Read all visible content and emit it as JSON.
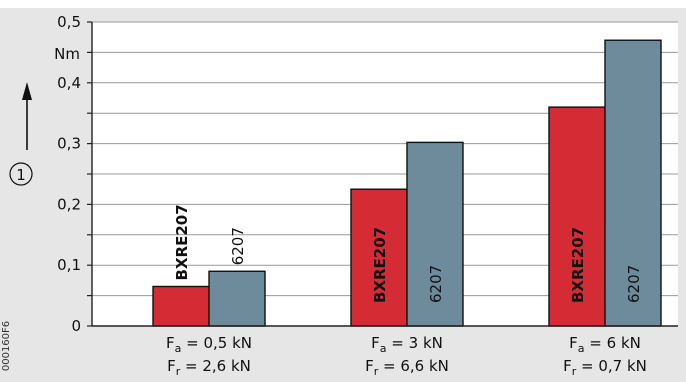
{
  "figure_code": "000160F6",
  "axis_marker": "1",
  "unit_label": "Nm",
  "colors": {
    "plot_bg": "#e6e6e6",
    "series_a": "#d52b35",
    "series_b": "#6e8b9b"
  },
  "chart_data": {
    "type": "bar",
    "title": "",
    "xlabel": "",
    "ylabel": "1",
    "ylim": [
      0,
      0.5
    ],
    "yunit": "Nm",
    "yticks": [
      "0",
      "0,1",
      "0,2",
      "0,3",
      "0,4",
      "0,5"
    ],
    "grid": true,
    "categories": [
      {
        "fa_sym": "F",
        "fa_sub": "a",
        "fa_val": " = 0,5 kN",
        "fr_sym": "F",
        "fr_sub": "r",
        "fr_val": " = 2,6 kN"
      },
      {
        "fa_sym": "F",
        "fa_sub": "a",
        "fa_val": " = 3 kN",
        "fr_sym": "F",
        "fr_sub": "r",
        "fr_val": " = 6,6 kN"
      },
      {
        "fa_sym": "F",
        "fa_sub": "a",
        "fa_val": " = 6 kN",
        "fr_sym": "F",
        "fr_sub": "r",
        "fr_val": " = 0,7 kN"
      }
    ],
    "series": [
      {
        "name": "BXRE207",
        "color": "#d52b35",
        "values": [
          0.065,
          0.225,
          0.36
        ]
      },
      {
        "name": "6207",
        "color": "#6e8b9b",
        "values": [
          0.09,
          0.302,
          0.47
        ]
      }
    ]
  }
}
